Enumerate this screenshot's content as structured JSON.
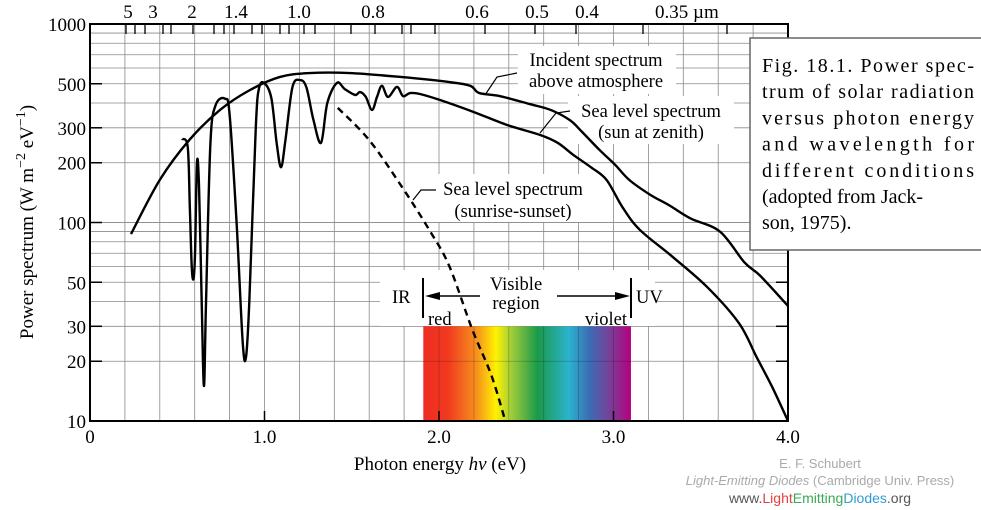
{
  "chart_data": {
    "type": "line",
    "xlabel_parts": [
      "Photon  energy  ",
      "hν",
      "  (eV)"
    ],
    "ylabel_parts": [
      "Power  spectrum   (W m",
      "−2",
      " eV",
      "−1",
      ")"
    ],
    "xlim": [
      0,
      4.0
    ],
    "ylim": [
      10,
      1000
    ],
    "yscale": "log",
    "grid": true,
    "x_ticks": [
      {
        "v": 0,
        "label": "0"
      },
      {
        "v": 1,
        "label": "1.0"
      },
      {
        "v": 2,
        "label": "2.0"
      },
      {
        "v": 3,
        "label": "3.0"
      },
      {
        "v": 4,
        "label": "4.0"
      }
    ],
    "y_ticks": [
      {
        "v": 1000,
        "label": "1000"
      },
      {
        "v": 500,
        "label": "500"
      },
      {
        "v": 300,
        "label": "300"
      },
      {
        "v": 200,
        "label": "200"
      },
      {
        "v": 100,
        "label": "100"
      },
      {
        "v": 50,
        "label": "50"
      },
      {
        "v": 30,
        "label": "30"
      },
      {
        "v": 20,
        "label": "20"
      },
      {
        "v": 10,
        "label": "10"
      }
    ],
    "top_axis_labels": [
      "5",
      "3",
      "2",
      "1.4",
      "1.0",
      "0.8",
      "0.6",
      "0.5",
      "0.4",
      "0.35 µm"
    ],
    "series": [
      {
        "name_lines": [
          "Incident spectrum",
          "above atmosphere"
        ],
        "style": "solid",
        "points": [
          [
            0.235,
            87.5
          ],
          [
            0.4,
            164
          ],
          [
            0.57,
            261
          ],
          [
            0.745,
            369
          ],
          [
            0.917,
            465
          ],
          [
            1.089,
            541
          ],
          [
            1.26,
            566
          ],
          [
            1.49,
            566
          ],
          [
            1.78,
            541
          ],
          [
            2.06,
            510
          ],
          [
            2.18,
            488
          ],
          [
            2.23,
            449
          ],
          [
            2.35,
            433
          ],
          [
            2.52,
            395
          ],
          [
            2.64,
            369
          ],
          [
            2.75,
            328
          ],
          [
            2.81,
            292
          ],
          [
            2.92,
            232
          ],
          [
            3.01,
            195
          ],
          [
            3.09,
            164
          ],
          [
            3.21,
            138
          ],
          [
            3.32,
            122
          ],
          [
            3.44,
            105
          ],
          [
            3.61,
            90
          ],
          [
            3.75,
            63
          ],
          [
            3.84,
            54
          ],
          [
            4.0,
            38
          ]
        ]
      },
      {
        "name_lines": [
          "Sea level spectrum",
          "(sun at zenith)"
        ],
        "style": "solid",
        "points": [
          [
            0.527,
            264
          ],
          [
            0.56,
            240
          ],
          [
            0.572,
            120
          ],
          [
            0.583,
            60
          ],
          [
            0.593,
            52
          ],
          [
            0.602,
            70
          ],
          [
            0.613,
            200
          ],
          [
            0.625,
            150
          ],
          [
            0.64,
            40
          ],
          [
            0.653,
            15
          ],
          [
            0.665,
            40
          ],
          [
            0.69,
            250
          ],
          [
            0.72,
            390
          ],
          [
            0.774,
            420
          ],
          [
            0.8,
            350
          ],
          [
            0.84,
            100
          ],
          [
            0.875,
            25
          ],
          [
            0.894,
            21
          ],
          [
            0.913,
            40
          ],
          [
            0.95,
            300
          ],
          [
            0.97,
            480
          ],
          [
            1.003,
            500
          ],
          [
            1.04,
            420
          ],
          [
            1.07,
            250
          ],
          [
            1.095,
            190
          ],
          [
            1.12,
            260
          ],
          [
            1.16,
            480
          ],
          [
            1.203,
            522
          ],
          [
            1.24,
            480
          ],
          [
            1.28,
            330
          ],
          [
            1.324,
            252
          ],
          [
            1.36,
            400
          ],
          [
            1.415,
            505
          ],
          [
            1.46,
            470
          ],
          [
            1.519,
            439
          ],
          [
            1.547,
            454
          ],
          [
            1.58,
            430
          ],
          [
            1.616,
            369
          ],
          [
            1.645,
            430
          ],
          [
            1.673,
            488
          ],
          [
            1.708,
            429
          ],
          [
            1.759,
            482
          ],
          [
            1.794,
            433
          ],
          [
            1.834,
            449
          ],
          [
            1.891,
            444
          ],
          [
            2.006,
            414
          ],
          [
            2.2,
            360
          ],
          [
            2.39,
            310
          ],
          [
            2.58,
            276
          ],
          [
            2.68,
            252
          ],
          [
            2.77,
            219
          ],
          [
            2.87,
            190
          ],
          [
            2.96,
            164
          ],
          [
            3.05,
            120
          ],
          [
            3.15,
            92
          ],
          [
            3.34,
            67
          ],
          [
            3.54,
            47
          ],
          [
            3.72,
            31
          ],
          [
            3.82,
            21
          ],
          [
            3.91,
            14.8
          ],
          [
            4.0,
            10
          ]
        ]
      },
      {
        "name_lines": [
          "Sea level spectrum",
          "(sunrise-sunset)"
        ],
        "style": "dashed",
        "points": [
          [
            1.42,
            378
          ],
          [
            1.6,
            260
          ],
          [
            1.79,
            150
          ],
          [
            1.95,
            90
          ],
          [
            2.06,
            60
          ],
          [
            2.19,
            29
          ],
          [
            2.3,
            17
          ],
          [
            2.38,
            10
          ]
        ]
      }
    ],
    "visible_region": {
      "range_ev": [
        1.91,
        3.1
      ],
      "label_lines": [
        "Visible",
        "region"
      ],
      "ir_label": "IR",
      "uv_label": "UV",
      "red_label": "red",
      "violet_label": "violet",
      "colors": [
        "#ef2d22",
        "#f03a1f",
        "#f7941d",
        "#fff200",
        "#a6ce39",
        "#1a9a4a",
        "#2bb3cf",
        "#3b6db4",
        "#7a3f98",
        "#b5007e"
      ]
    },
    "caption_lines": [
      "Fig. 18.1. Power spec-",
      "trum of solar radiation",
      "versus photon energy",
      "and wavelength for",
      "different    conditions",
      "(adopted from Jack-",
      "son, 1975)."
    ]
  },
  "credits": {
    "author": "E. F. Schubert",
    "book_title": "Light-Emitting Diodes",
    "publisher": " (Cambridge Univ. Press)",
    "url_parts": [
      "www.",
      "Light",
      "Emitting",
      "Diodes",
      ".org"
    ],
    "url_colors": [
      "#555555",
      "#e8403a",
      "#3aa856",
      "#2f9fd0",
      "#555555"
    ]
  }
}
